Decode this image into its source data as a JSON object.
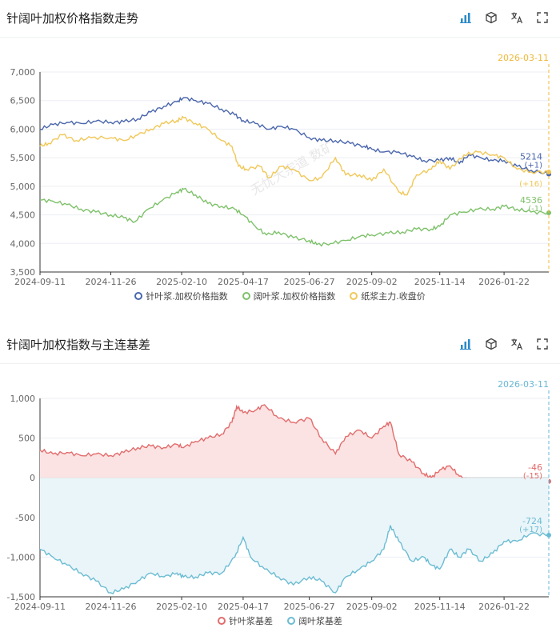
{
  "toolbar_icons": [
    "bar-chart-icon",
    "cube-icon",
    "translate-icon",
    "fullscreen-icon"
  ],
  "chart_data": [
    {
      "type": "line",
      "title": "针阔叶加权价格指数走势",
      "x_ticks": [
        "2024-09-11",
        "2024-11-26",
        "2025-02-10",
        "2025-04-17",
        "2025-06-27",
        "2025-09-02",
        "2025-11-14",
        "2026-01-22"
      ],
      "x_range": [
        "2024-09-11",
        "2026-03-11"
      ],
      "ylim": [
        3500,
        7000
      ],
      "y_ticks": [
        "3,500",
        "4,000",
        "4,500",
        "5,000",
        "5,500",
        "6,000",
        "6,500",
        "7,000"
      ],
      "marker_date": "2026-03-11",
      "marker_color": "#f0b83a",
      "legend_position": "bottom",
      "series": [
        {
          "name": "针叶浆.加权价格指数",
          "color": "#4a66ac",
          "points": [
            [
              "2024-09-11",
              6000
            ],
            [
              "2024-09-25",
              6080
            ],
            [
              "2024-10-10",
              6120
            ],
            [
              "2024-10-25",
              6100
            ],
            [
              "2024-11-10",
              6140
            ],
            [
              "2024-11-26",
              6120
            ],
            [
              "2024-12-10",
              6130
            ],
            [
              "2024-12-25",
              6180
            ],
            [
              "2025-01-08",
              6300
            ],
            [
              "2025-01-22",
              6400
            ],
            [
              "2025-02-05",
              6480
            ],
            [
              "2025-02-12",
              6550
            ],
            [
              "2025-02-25",
              6500
            ],
            [
              "2025-03-10",
              6450
            ],
            [
              "2025-03-25",
              6350
            ],
            [
              "2025-04-08",
              6250
            ],
            [
              "2025-04-17",
              6150
            ],
            [
              "2025-04-30",
              6100
            ],
            [
              "2025-05-15",
              6000
            ],
            [
              "2025-05-28",
              6050
            ],
            [
              "2025-06-10",
              6000
            ],
            [
              "2025-06-27",
              5850
            ],
            [
              "2025-07-10",
              5800
            ],
            [
              "2025-07-25",
              5800
            ],
            [
              "2025-08-10",
              5750
            ],
            [
              "2025-08-25",
              5700
            ],
            [
              "2025-09-02",
              5650
            ],
            [
              "2025-09-15",
              5600
            ],
            [
              "2025-10-01",
              5600
            ],
            [
              "2025-10-15",
              5520
            ],
            [
              "2025-10-28",
              5450
            ],
            [
              "2025-11-14",
              5450
            ],
            [
              "2025-11-25",
              5500
            ],
            [
              "2025-12-05",
              5400
            ],
            [
              "2025-12-15",
              5550
            ],
            [
              "2025-12-28",
              5500
            ],
            [
              "2026-01-10",
              5450
            ],
            [
              "2026-01-22",
              5450
            ],
            [
              "2026-02-05",
              5350
            ],
            [
              "2026-02-20",
              5280
            ],
            [
              "2026-03-11",
              5214
            ]
          ],
          "last_value": "5214",
          "last_change": "(+1)"
        },
        {
          "name": "阔叶浆.加权价格指数",
          "color": "#7ec16a",
          "points": [
            [
              "2024-09-11",
              4760
            ],
            [
              "2024-09-25",
              4740
            ],
            [
              "2024-10-10",
              4680
            ],
            [
              "2024-10-25",
              4600
            ],
            [
              "2024-11-10",
              4550
            ],
            [
              "2024-11-26",
              4500
            ],
            [
              "2024-12-10",
              4450
            ],
            [
              "2024-12-22",
              4380
            ],
            [
              "2025-01-05",
              4600
            ],
            [
              "2025-01-20",
              4750
            ],
            [
              "2025-02-05",
              4900
            ],
            [
              "2025-02-12",
              4950
            ],
            [
              "2025-02-25",
              4850
            ],
            [
              "2025-03-10",
              4700
            ],
            [
              "2025-03-25",
              4650
            ],
            [
              "2025-04-08",
              4600
            ],
            [
              "2025-04-17",
              4500
            ],
            [
              "2025-04-30",
              4300
            ],
            [
              "2025-05-12",
              4150
            ],
            [
              "2025-05-25",
              4200
            ],
            [
              "2025-06-10",
              4100
            ],
            [
              "2025-06-27",
              4050
            ],
            [
              "2025-07-05",
              3980
            ],
            [
              "2025-07-20",
              4000
            ],
            [
              "2025-08-05",
              4050
            ],
            [
              "2025-08-20",
              4120
            ],
            [
              "2025-09-02",
              4150
            ],
            [
              "2025-09-20",
              4180
            ],
            [
              "2025-10-05",
              4200
            ],
            [
              "2025-10-20",
              4250
            ],
            [
              "2025-11-05",
              4250
            ],
            [
              "2025-11-14",
              4300
            ],
            [
              "2025-11-25",
              4500
            ],
            [
              "2025-12-10",
              4550
            ],
            [
              "2025-12-25",
              4600
            ],
            [
              "2026-01-10",
              4600
            ],
            [
              "2026-01-22",
              4650
            ],
            [
              "2026-02-05",
              4600
            ],
            [
              "2026-02-20",
              4550
            ],
            [
              "2026-03-11",
              4536
            ]
          ],
          "last_value": "4536",
          "last_change": "(-1)"
        },
        {
          "name": "纸浆主力.收盘价",
          "color": "#f0c859",
          "points": [
            [
              "2024-09-11",
              5700
            ],
            [
              "2024-09-20",
              5750
            ],
            [
              "2024-10-05",
              5900
            ],
            [
              "2024-10-20",
              5800
            ],
            [
              "2024-11-05",
              5850
            ],
            [
              "2024-11-26",
              5850
            ],
            [
              "2024-12-10",
              5800
            ],
            [
              "2024-12-25",
              5900
            ],
            [
              "2025-01-08",
              6000
            ],
            [
              "2025-01-22",
              6100
            ],
            [
              "2025-02-05",
              6150
            ],
            [
              "2025-02-12",
              6200
            ],
            [
              "2025-02-25",
              6100
            ],
            [
              "2025-03-10",
              6000
            ],
            [
              "2025-03-25",
              5800
            ],
            [
              "2025-04-05",
              5700
            ],
            [
              "2025-04-12",
              5350
            ],
            [
              "2025-04-20",
              5300
            ],
            [
              "2025-05-05",
              5350
            ],
            [
              "2025-05-15",
              5150
            ],
            [
              "2025-05-28",
              5350
            ],
            [
              "2025-06-10",
              5300
            ],
            [
              "2025-06-27",
              5100
            ],
            [
              "2025-07-10",
              5150
            ],
            [
              "2025-07-25",
              5500
            ],
            [
              "2025-08-05",
              5200
            ],
            [
              "2025-08-20",
              5200
            ],
            [
              "2025-09-02",
              5100
            ],
            [
              "2025-09-15",
              5300
            ],
            [
              "2025-10-01",
              4900
            ],
            [
              "2025-10-10",
              4850
            ],
            [
              "2025-10-20",
              5200
            ],
            [
              "2025-11-05",
              5300
            ],
            [
              "2025-11-14",
              5450
            ],
            [
              "2025-11-25",
              5300
            ],
            [
              "2025-12-10",
              5550
            ],
            [
              "2025-12-25",
              5600
            ],
            [
              "2026-01-10",
              5550
            ],
            [
              "2026-01-22",
              5500
            ],
            [
              "2026-02-05",
              5300
            ],
            [
              "2026-02-20",
              5250
            ],
            [
              "2026-03-11",
              5250
            ]
          ],
          "last_value": "",
          "last_change": "(+16)"
        }
      ]
    },
    {
      "type": "area",
      "title": "针阔叶加权指数与主连基差",
      "x_ticks": [
        "2024-09-11",
        "2024-11-26",
        "2025-02-10",
        "2025-04-17",
        "2025-06-27",
        "2025-09-02",
        "2025-11-14",
        "2026-01-22"
      ],
      "x_range": [
        "2024-09-11",
        "2026-03-11"
      ],
      "ylim": [
        -1500,
        1000
      ],
      "y_ticks": [
        "-1,500",
        "-1,000",
        "-500",
        "0",
        "500",
        "1,000"
      ],
      "marker_date": "2026-03-11",
      "marker_color": "#68b7d4",
      "legend_position": "bottom",
      "series": [
        {
          "name": "针叶浆基差",
          "color": "#e26c6c",
          "fill": "#fbe3e3",
          "points": [
            [
              "2024-09-11",
              350
            ],
            [
              "2024-09-25",
              300
            ],
            [
              "2024-10-10",
              320
            ],
            [
              "2024-10-25",
              280
            ],
            [
              "2024-11-10",
              300
            ],
            [
              "2024-11-26",
              280
            ],
            [
              "2024-12-10",
              320
            ],
            [
              "2024-12-25",
              380
            ],
            [
              "2025-01-08",
              400
            ],
            [
              "2025-01-22",
              380
            ],
            [
              "2025-02-05",
              420
            ],
            [
              "2025-02-12",
              380
            ],
            [
              "2025-02-25",
              460
            ],
            [
              "2025-03-10",
              500
            ],
            [
              "2025-03-25",
              550
            ],
            [
              "2025-04-05",
              700
            ],
            [
              "2025-04-10",
              900
            ],
            [
              "2025-04-17",
              820
            ],
            [
              "2025-04-30",
              850
            ],
            [
              "2025-05-10",
              920
            ],
            [
              "2025-05-25",
              750
            ],
            [
              "2025-06-10",
              700
            ],
            [
              "2025-06-27",
              750
            ],
            [
              "2025-07-10",
              500
            ],
            [
              "2025-07-25",
              300
            ],
            [
              "2025-08-05",
              520
            ],
            [
              "2025-08-20",
              600
            ],
            [
              "2025-09-02",
              500
            ],
            [
              "2025-09-15",
              650
            ],
            [
              "2025-09-22",
              700
            ],
            [
              "2025-10-01",
              300
            ],
            [
              "2025-10-15",
              200
            ],
            [
              "2025-10-28",
              50
            ],
            [
              "2025-11-05",
              0
            ],
            [
              "2025-11-14",
              100
            ],
            [
              "2025-11-25",
              150
            ],
            [
              "2025-12-05",
              20
            ],
            [
              "2025-12-15",
              -50
            ],
            [
              "2025-12-28",
              -30
            ],
            [
              "2026-01-10",
              -60
            ],
            [
              "2026-01-22",
              -30
            ],
            [
              "2026-02-05",
              -20
            ],
            [
              "2026-02-20",
              -40
            ],
            [
              "2026-03-11",
              -46
            ]
          ],
          "last_value": "-46",
          "last_change": "(-15)"
        },
        {
          "name": "阔叶浆基差",
          "color": "#6bbcd3",
          "fill": "#eaf5f9",
          "points": [
            [
              "2024-09-11",
              -900
            ],
            [
              "2024-09-25",
              -1000
            ],
            [
              "2024-10-10",
              -1100
            ],
            [
              "2024-10-25",
              -1200
            ],
            [
              "2024-11-10",
              -1300
            ],
            [
              "2024-11-26",
              -1450
            ],
            [
              "2024-12-10",
              -1400
            ],
            [
              "2024-12-25",
              -1300
            ],
            [
              "2025-01-08",
              -1200
            ],
            [
              "2025-01-22",
              -1250
            ],
            [
              "2025-02-05",
              -1200
            ],
            [
              "2025-02-12",
              -1250
            ],
            [
              "2025-02-25",
              -1250
            ],
            [
              "2025-03-10",
              -1200
            ],
            [
              "2025-03-25",
              -1200
            ],
            [
              "2025-04-08",
              -1000
            ],
            [
              "2025-04-17",
              -750
            ],
            [
              "2025-04-25",
              -1000
            ],
            [
              "2025-05-10",
              -1150
            ],
            [
              "2025-05-25",
              -1250
            ],
            [
              "2025-06-10",
              -1350
            ],
            [
              "2025-06-27",
              -1250
            ],
            [
              "2025-07-10",
              -1300
            ],
            [
              "2025-07-25",
              -1450
            ],
            [
              "2025-08-05",
              -1250
            ],
            [
              "2025-08-20",
              -1150
            ],
            [
              "2025-09-02",
              -1050
            ],
            [
              "2025-09-15",
              -900
            ],
            [
              "2025-09-22",
              -600
            ],
            [
              "2025-10-01",
              -800
            ],
            [
              "2025-10-15",
              -1050
            ],
            [
              "2025-10-28",
              -1000
            ],
            [
              "2025-11-05",
              -1100
            ],
            [
              "2025-11-14",
              -1150
            ],
            [
              "2025-11-25",
              -900
            ],
            [
              "2025-12-05",
              -1000
            ],
            [
              "2025-12-15",
              -900
            ],
            [
              "2025-12-28",
              -1050
            ],
            [
              "2026-01-10",
              -950
            ],
            [
              "2026-01-22",
              -800
            ],
            [
              "2026-02-05",
              -800
            ],
            [
              "2026-02-20",
              -700
            ],
            [
              "2026-03-11",
              -724
            ]
          ],
          "last_value": "-724",
          "last_change": "(+17)"
        }
      ]
    }
  ],
  "watermark": "无忧大宗道 数矿"
}
